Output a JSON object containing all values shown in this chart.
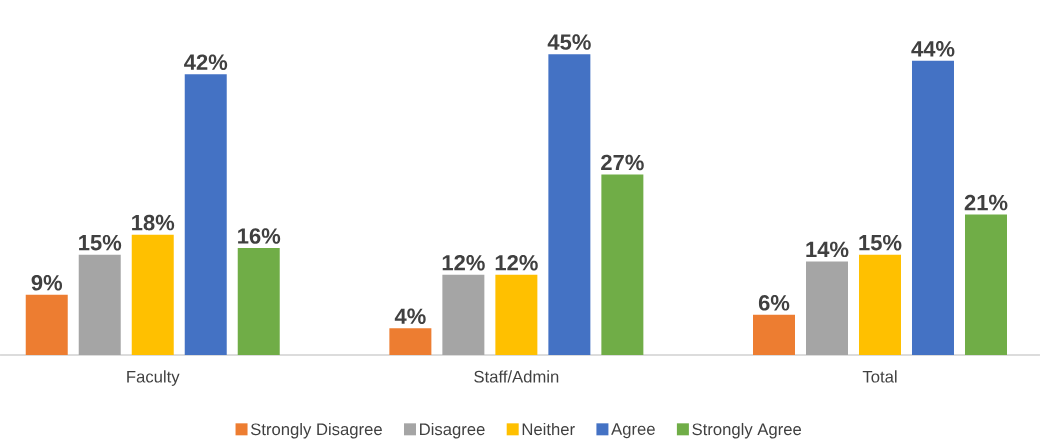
{
  "chart_data": {
    "type": "bar",
    "categories": [
      "Faculty",
      "Staff/Admin",
      "Total"
    ],
    "series": [
      {
        "name": "Strongly Disagree",
        "color": "#ed7d31",
        "values": [
          9,
          4,
          6
        ],
        "value_labels": [
          "9%",
          "4%",
          "6%"
        ]
      },
      {
        "name": "Disagree",
        "color": "#a5a5a5",
        "values": [
          15,
          12,
          14
        ],
        "value_labels": [
          "15%",
          "12%",
          "14%"
        ]
      },
      {
        "name": "Neither",
        "color": "#ffc000",
        "values": [
          18,
          12,
          15
        ],
        "value_labels": [
          "18%",
          "12%",
          "15%"
        ]
      },
      {
        "name": "Agree",
        "color": "#4472c4",
        "values": [
          42,
          45,
          44
        ],
        "value_labels": [
          "42%",
          "45%",
          "44%"
        ]
      },
      {
        "name": "Strongly Agree",
        "color": "#70ad47",
        "values": [
          16,
          27,
          21
        ],
        "value_labels": [
          "16%",
          "27%",
          "21%"
        ]
      }
    ],
    "legend": "bottom"
  }
}
